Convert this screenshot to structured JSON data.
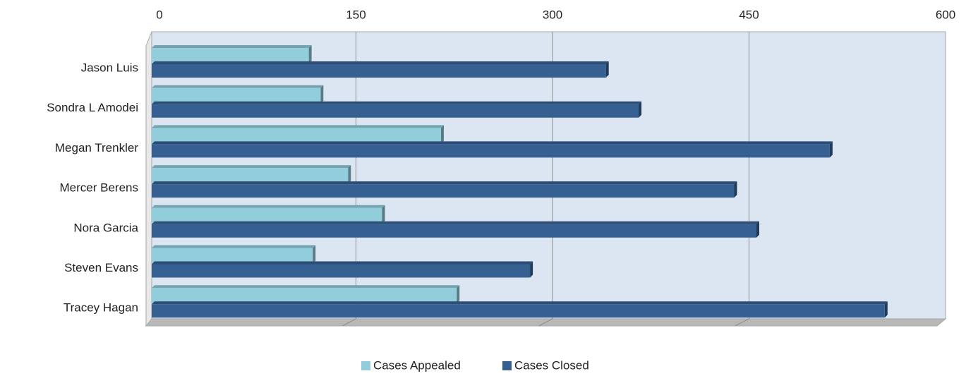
{
  "chart_data": {
    "type": "bar3d",
    "categories": [
      "Jason Luis",
      "Sondra L Amodei",
      "Megan Trenkler",
      "Mercer Berens",
      "Nora Garcia",
      "Steven Evans",
      "Tracey Hagan"
    ],
    "series": [
      {
        "name": "Cases Appealed",
        "color": "#92cddc",
        "values": [
          120,
          129,
          221,
          150,
          176,
          123,
          233
        ]
      },
      {
        "name": "Cases Closed",
        "color": "#376092",
        "values": [
          347,
          372,
          518,
          445,
          462,
          289,
          560
        ]
      }
    ],
    "xlim": [
      0,
      600
    ],
    "xticks": [
      0,
      150,
      300,
      450,
      600
    ],
    "grid": true
  }
}
